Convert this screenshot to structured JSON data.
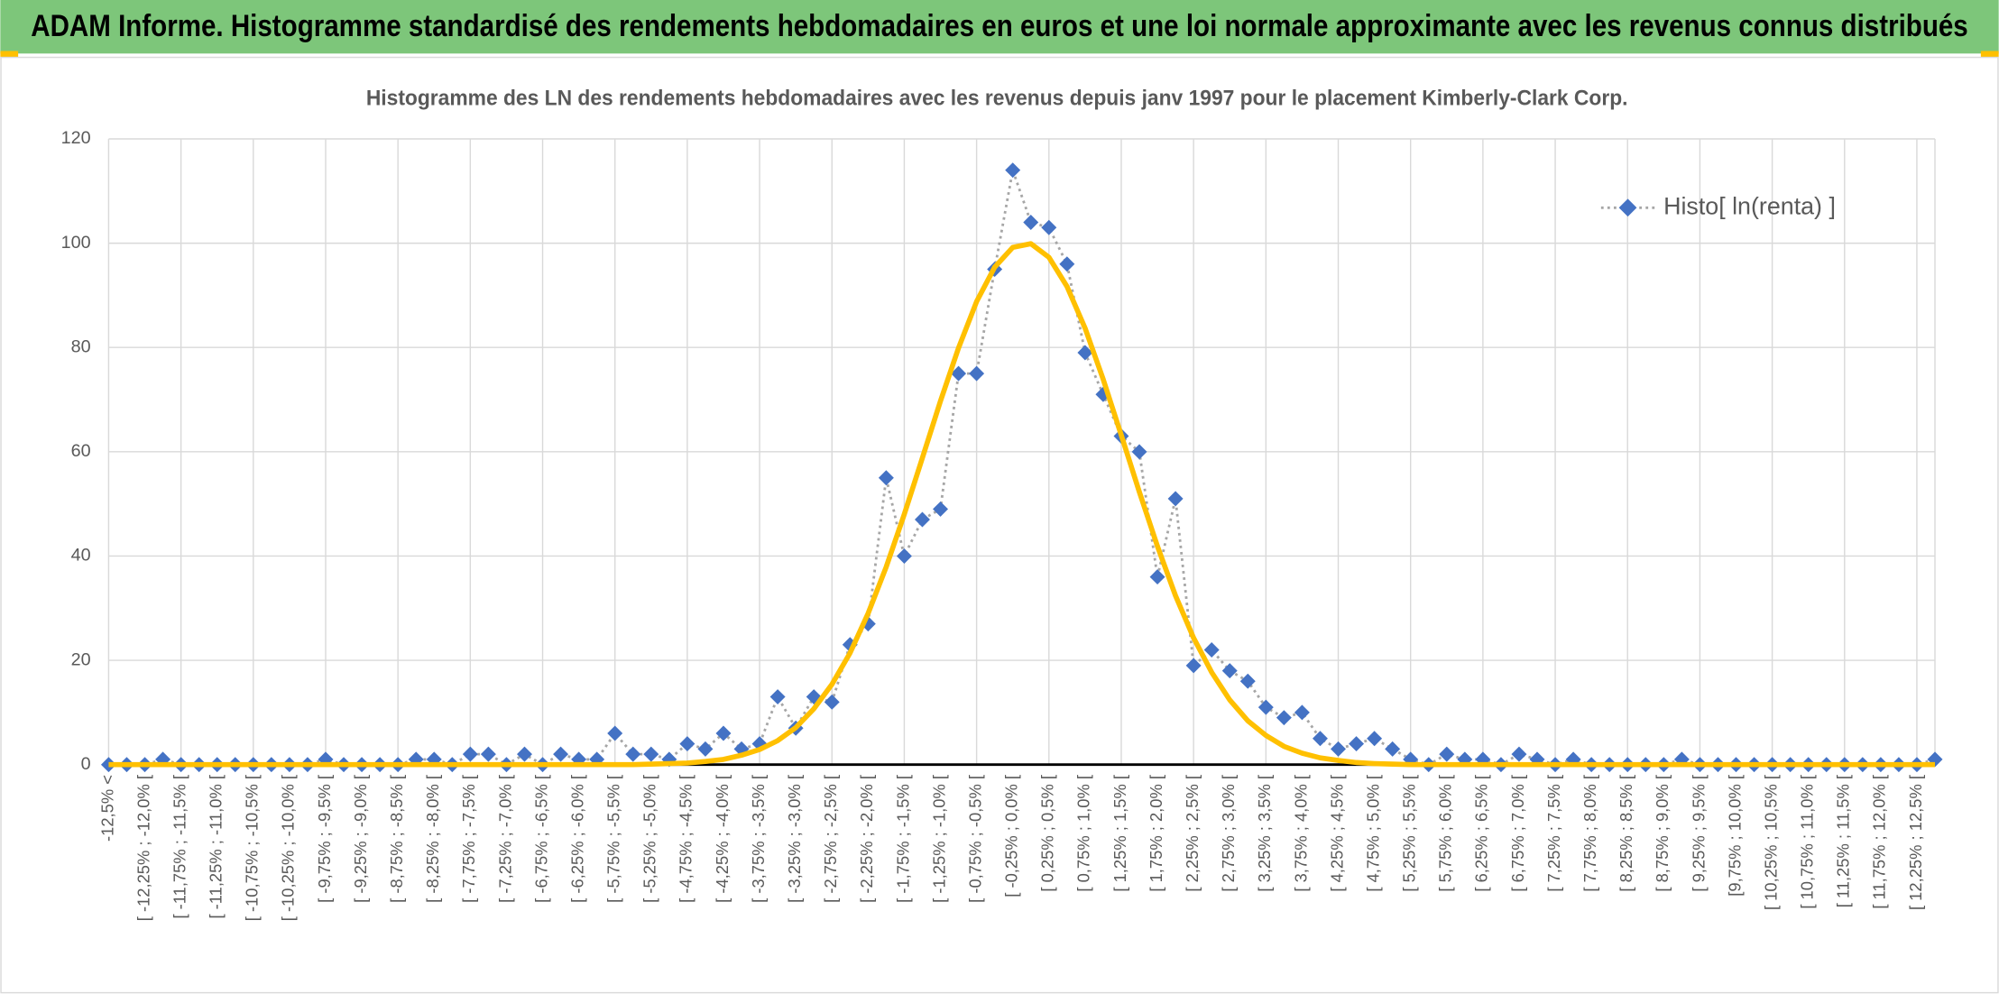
{
  "chart_data": {
    "type": "line",
    "title": "ADAM Informe. Histogramme standardisé des rendements hebdomadaires en euros et une loi normale approximante avec les revenus connus distribués",
    "subtitle": "Histogramme des LN des rendements hebdomadaires avec les revenus depuis janv 1997 pour le placement Kimberly-Clark Corp.",
    "categories": [
      "-12,5% <",
      null,
      "[ -12,25% ; -12,0% [",
      null,
      "[ -11,75% ; -11,5% [",
      null,
      "[ -11,25% ; -11,0% [",
      null,
      "[ -10,75% ; -10,5% [",
      null,
      "[ -10,25% ; -10,0% [",
      null,
      "[ -9,75% ; -9,5% [",
      null,
      "[ -9,25% ; -9,0% [",
      null,
      "[ -8,75% ; -8,5% [",
      null,
      "[ -8,25% ; -8,0% [",
      null,
      "[ -7,75% ; -7,5% [",
      null,
      "[ -7,25% ; -7,0% [",
      null,
      "[ -6,75% ; -6,5% [",
      null,
      "[ -6,25% ; -6,0% [",
      null,
      "[ -5,75% ; -5,5% [",
      null,
      "[ -5,25% ; -5,0% [",
      null,
      "[ -4,75% ; -4,5% [",
      null,
      "[ -4,25% ; -4,0% [",
      null,
      "[ -3,75% ; -3,5% [",
      null,
      "[ -3,25% ; -3,0% [",
      null,
      "[ -2,75% ; -2,5% [",
      null,
      "[ -2,25% ; -2,0% [",
      null,
      "[ -1,75% ; -1,5% [",
      null,
      "[ -1,25% ; -1,0% [",
      null,
      "[ -0,75% ; -0,5% [",
      null,
      "[ -0,25% ; 0,0% [",
      null,
      "[ 0,25% ; 0,5% [",
      null,
      "[ 0,75% ; 1,0% [",
      null,
      "[ 1,25% ; 1,5% [",
      null,
      "[ 1,75% ; 2,0% [",
      null,
      "[ 2,25% ; 2,5% [",
      null,
      "[ 2,75% ; 3,0% [",
      null,
      "[ 3,25% ; 3,5% [",
      null,
      "[ 3,75% ; 4,0% [",
      null,
      "[ 4,25% ; 4,5% [",
      null,
      "[ 4,75% ; 5,0% [",
      null,
      "[ 5,25% ; 5,5% [",
      null,
      "[ 5,75% ; 6,0% [",
      null,
      "[ 6,25% ; 6,5% [",
      null,
      "[ 6,75% ; 7,0% [",
      null,
      "[ 7,25% ; 7,5% [",
      null,
      "[ 7,75% ; 8,0% [",
      null,
      "[ 8,25% ; 8,5% [",
      null,
      "[ 8,75% ; 9,0% [",
      null,
      "[ 9,25% ; 9,5% [",
      null,
      "[9,75% ; 10,0% [",
      null,
      "[ 10,25% ; 10,5% [",
      null,
      "[ 10,75% ; 11,0% [",
      null,
      "[ 11,25% ; 11,5% [",
      null,
      "[ 11,75% ; 12,0% [",
      null,
      "[ 12,25% ; 12,5% [",
      null
    ],
    "series": [
      {
        "name": "Histo[ ln(renta) ]",
        "color": "#4472c4",
        "line_color": "#a6a6a6",
        "line_style": "dotted",
        "marker": "diamond",
        "values": [
          0,
          0,
          0,
          1,
          0,
          0,
          0,
          0,
          0,
          0,
          0,
          0,
          1,
          0,
          0,
          0,
          0,
          1,
          1,
          0,
          2,
          2,
          0,
          2,
          0,
          2,
          1,
          1,
          6,
          2,
          2,
          1,
          4,
          3,
          6,
          3,
          4,
          13,
          7,
          13,
          12,
          23,
          27,
          55,
          40,
          47,
          49,
          75,
          75,
          95,
          114,
          104,
          103,
          96,
          79,
          71,
          63,
          60,
          36,
          51,
          19,
          22,
          18,
          16,
          11,
          9,
          10,
          5,
          3,
          4,
          5,
          3,
          1,
          0,
          2,
          1,
          1,
          0,
          2,
          1,
          0,
          1,
          0,
          0,
          0,
          0,
          0,
          1,
          0,
          0,
          0,
          0,
          0,
          0,
          0,
          0,
          0,
          0,
          0,
          0,
          0,
          1
        ]
      },
      {
        "color": "#ffc000",
        "values": [
          0,
          0,
          0,
          0,
          0,
          0,
          0,
          0,
          0,
          0,
          0,
          0,
          0,
          0,
          0,
          0,
          0,
          0,
          0,
          0,
          0,
          0,
          0,
          0,
          0,
          0,
          0,
          0,
          0,
          0,
          0.1,
          0.2,
          0.3,
          0.6,
          1.0,
          1.8,
          2.9,
          4.6,
          7.1,
          10.7,
          15.4,
          21.4,
          29.0,
          37.9,
          48.0,
          58.8,
          69.7,
          79.9,
          88.8,
          95.4,
          99.2,
          99.9,
          97.3,
          91.7,
          83.7,
          73.9,
          63.2,
          52.3,
          41.9,
          32.4,
          24.3,
          17.7,
          12.4,
          8.4,
          5.6,
          3.5,
          2.2,
          1.3,
          0.8,
          0.4,
          0.2,
          0.1,
          0,
          0,
          0,
          0,
          0,
          0,
          0,
          0,
          0,
          0,
          0,
          0,
          0,
          0,
          0,
          0,
          0,
          0,
          0,
          0,
          0,
          0,
          0,
          0,
          0,
          0,
          0,
          0,
          0,
          0
        ]
      }
    ],
    "ylim": [
      0,
      120
    ],
    "yticks": [
      0,
      20,
      40,
      60,
      80,
      100,
      120
    ],
    "grid": true,
    "legend": "upper right"
  }
}
